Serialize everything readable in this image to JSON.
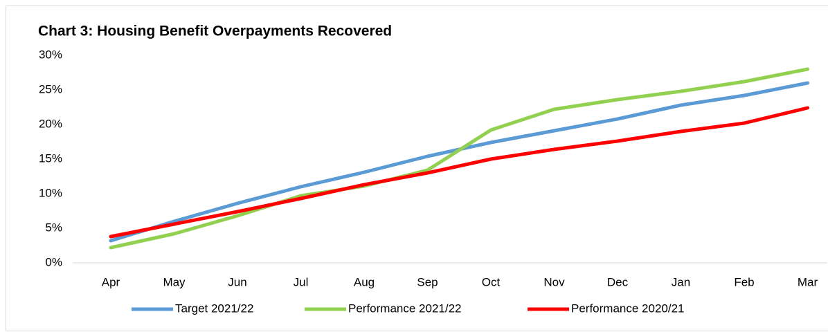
{
  "chart_data": {
    "type": "line",
    "title": "Chart 3: Housing Benefit Overpayments Recovered",
    "categories": [
      "Apr",
      "May",
      "Jun",
      "Jul",
      "Aug",
      "Sep",
      "Oct",
      "Nov",
      "Dec",
      "Jan",
      "Feb",
      "Mar"
    ],
    "series": [
      {
        "name": "Target 2021/22",
        "color": "#5b9bd5",
        "values": [
          3.2,
          6.0,
          8.6,
          11.0,
          13.1,
          15.4,
          17.4,
          19.1,
          20.8,
          22.8,
          24.2,
          26.0
        ]
      },
      {
        "name": "Performance 2021/22",
        "color": "#92d050",
        "values": [
          2.2,
          4.2,
          6.8,
          9.7,
          11.1,
          13.4,
          19.2,
          22.2,
          23.6,
          24.8,
          26.2,
          28.0
        ]
      },
      {
        "name": "Performance 2020/21",
        "color": "#ff0000",
        "values": [
          3.8,
          5.6,
          7.4,
          9.3,
          11.3,
          13.0,
          15.0,
          16.4,
          17.6,
          19.0,
          20.2,
          22.4
        ]
      }
    ],
    "ylim": [
      0,
      30
    ],
    "yticks": [
      {
        "value": 0,
        "label": "0%"
      },
      {
        "value": 5,
        "label": "5%"
      },
      {
        "value": 10,
        "label": "10%"
      },
      {
        "value": 15,
        "label": "15%"
      },
      {
        "value": 20,
        "label": "20%"
      },
      {
        "value": 25,
        "label": "25%"
      },
      {
        "value": 30,
        "label": "30%"
      }
    ],
    "legend": "bottom"
  }
}
